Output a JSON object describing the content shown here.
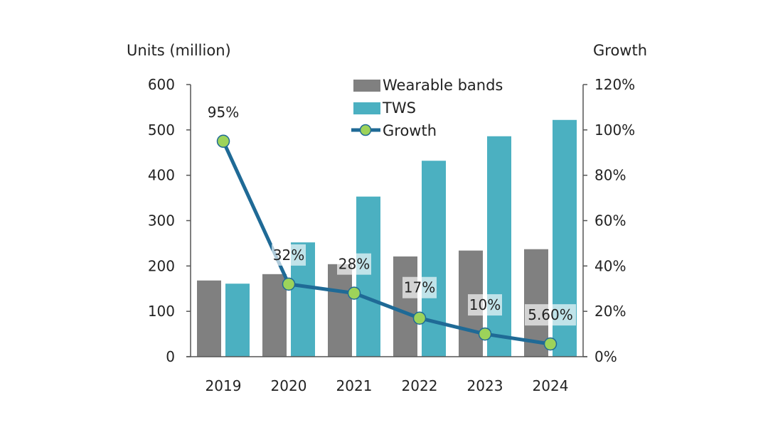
{
  "chart_data": {
    "type": "bar",
    "title": "",
    "xlabel": "",
    "ylabel": "Units (million)",
    "y2label": "Growth",
    "categories": [
      "2019",
      "2020",
      "2021",
      "2022",
      "2023",
      "2024"
    ],
    "ylim": [
      0,
      600
    ],
    "yticks": [
      0,
      100,
      200,
      300,
      400,
      500,
      600
    ],
    "y2lim": [
      0,
      1.2
    ],
    "y2ticks": [
      "0%",
      "20%",
      "40%",
      "60%",
      "80%",
      "100%",
      "120%"
    ],
    "grid": false,
    "legend_position": "top-center",
    "series": [
      {
        "name": "Wearable bands",
        "type": "bar",
        "axis": "left",
        "color": "#808080",
        "values": [
          168,
          182,
          204,
          221,
          234,
          237
        ]
      },
      {
        "name": "TWS",
        "type": "bar",
        "axis": "left",
        "color": "#4bb0c1",
        "values": [
          161,
          252,
          353,
          432,
          486,
          522
        ]
      },
      {
        "name": "Growth",
        "type": "line",
        "axis": "right",
        "color": "#1f6a96",
        "marker_color": "#9dd35a",
        "values": [
          0.95,
          0.32,
          0.28,
          0.17,
          0.1,
          0.056
        ],
        "labels": [
          "95%",
          "32%",
          "28%",
          "17%",
          "10%",
          "5.60%"
        ]
      }
    ]
  }
}
